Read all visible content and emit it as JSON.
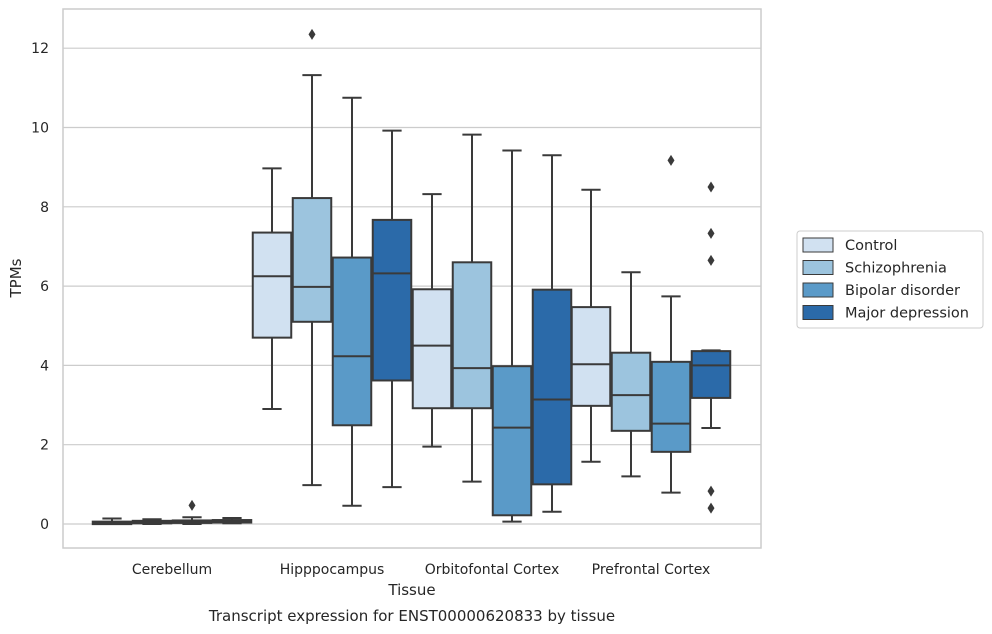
{
  "caption": "Transcript expression for ENST00000620833 by tissue",
  "chart_data": {
    "type": "box",
    "title": "",
    "xlabel": "Tissue",
    "ylabel": "TPMs",
    "ylim": [
      -0.6,
      13.0
    ],
    "yticks": [
      0,
      2,
      4,
      6,
      8,
      10,
      12
    ],
    "grid": "horizontal",
    "legend_position": "right",
    "categories": [
      "Cerebellum",
      "Hipppocampus",
      "Orbitofontal Cortex",
      "Prefrontal Cortex"
    ],
    "series": [
      {
        "name": "Control",
        "color": "#d1e1f1",
        "boxes": [
          {
            "whisker_low": 0.0,
            "q1": 0.01,
            "median": 0.03,
            "q3": 0.06,
            "whisker_high": 0.14,
            "outliers": []
          },
          {
            "whisker_low": 2.9,
            "q1": 4.7,
            "median": 6.25,
            "q3": 7.35,
            "whisker_high": 8.97,
            "outliers": []
          },
          {
            "whisker_low": 1.95,
            "q1": 2.92,
            "median": 4.5,
            "q3": 5.92,
            "whisker_high": 8.32,
            "outliers": []
          },
          {
            "whisker_low": 1.57,
            "q1": 2.98,
            "median": 4.03,
            "q3": 5.47,
            "whisker_high": 8.43,
            "outliers": []
          }
        ]
      },
      {
        "name": "Schizophrenia",
        "color": "#9cc4de",
        "boxes": [
          {
            "whisker_low": 0.0,
            "q1": 0.02,
            "median": 0.05,
            "q3": 0.08,
            "whisker_high": 0.12,
            "outliers": []
          },
          {
            "whisker_low": 0.98,
            "q1": 5.1,
            "median": 5.98,
            "q3": 8.22,
            "whisker_high": 11.32,
            "outliers": [
              12.35
            ]
          },
          {
            "whisker_low": 1.07,
            "q1": 2.92,
            "median": 3.93,
            "q3": 6.6,
            "whisker_high": 9.82,
            "outliers": []
          },
          {
            "whisker_low": 1.2,
            "q1": 2.35,
            "median": 3.25,
            "q3": 4.32,
            "whisker_high": 6.35,
            "outliers": []
          }
        ]
      },
      {
        "name": "Bipolar disorder",
        "color": "#5a9ac8",
        "boxes": [
          {
            "whisker_low": 0.0,
            "q1": 0.03,
            "median": 0.06,
            "q3": 0.09,
            "whisker_high": 0.17,
            "outliers": [
              0.47
            ]
          },
          {
            "whisker_low": 0.46,
            "q1": 2.49,
            "median": 4.23,
            "q3": 6.72,
            "whisker_high": 10.75,
            "outliers": []
          },
          {
            "whisker_low": 0.06,
            "q1": 0.22,
            "median": 2.43,
            "q3": 3.98,
            "whisker_high": 9.42,
            "outliers": []
          },
          {
            "whisker_low": 0.79,
            "q1": 1.82,
            "median": 2.53,
            "q3": 4.09,
            "whisker_high": 5.74,
            "outliers": [
              9.17
            ]
          }
        ]
      },
      {
        "name": "Major depression",
        "color": "#2b6aa9",
        "boxes": [
          {
            "whisker_low": 0.02,
            "q1": 0.04,
            "median": 0.07,
            "q3": 0.1,
            "whisker_high": 0.15,
            "outliers": []
          },
          {
            "whisker_low": 0.93,
            "q1": 3.62,
            "median": 6.32,
            "q3": 7.67,
            "whisker_high": 9.92,
            "outliers": []
          },
          {
            "whisker_low": 0.31,
            "q1": 1.0,
            "median": 3.14,
            "q3": 5.91,
            "whisker_high": 9.3,
            "outliers": []
          },
          {
            "whisker_low": 2.42,
            "q1": 3.18,
            "median": 4.0,
            "q3": 4.36,
            "whisker_high": 4.38,
            "outliers": [
              8.5,
              7.33,
              6.65,
              0.83,
              0.4
            ]
          }
        ]
      }
    ]
  }
}
